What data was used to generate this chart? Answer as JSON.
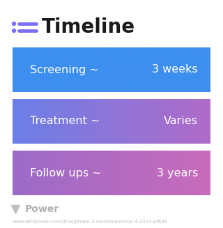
{
  "title": "Timeline",
  "title_icon_color": "#7C6FF7",
  "background_color": "#ffffff",
  "rows": [
    {
      "label": "Screening ~",
      "value": "3 weeks",
      "color_left": "#3D8FEF",
      "color_right": "#3D8FEF"
    },
    {
      "label": "Treatment ~",
      "value": "Varies",
      "color_left": "#6B7FE8",
      "color_right": "#B06BC8"
    },
    {
      "label": "Follow ups ~",
      "value": "3 years",
      "color_left": "#9B6BC8",
      "color_right": "#C96BBB"
    }
  ],
  "footer_logo_text": "Power",
  "footer_url": "www.withpower.com/trial/phase-2-neuroblastoma-4-2014-af646",
  "footer_color": "#bbbbbb"
}
